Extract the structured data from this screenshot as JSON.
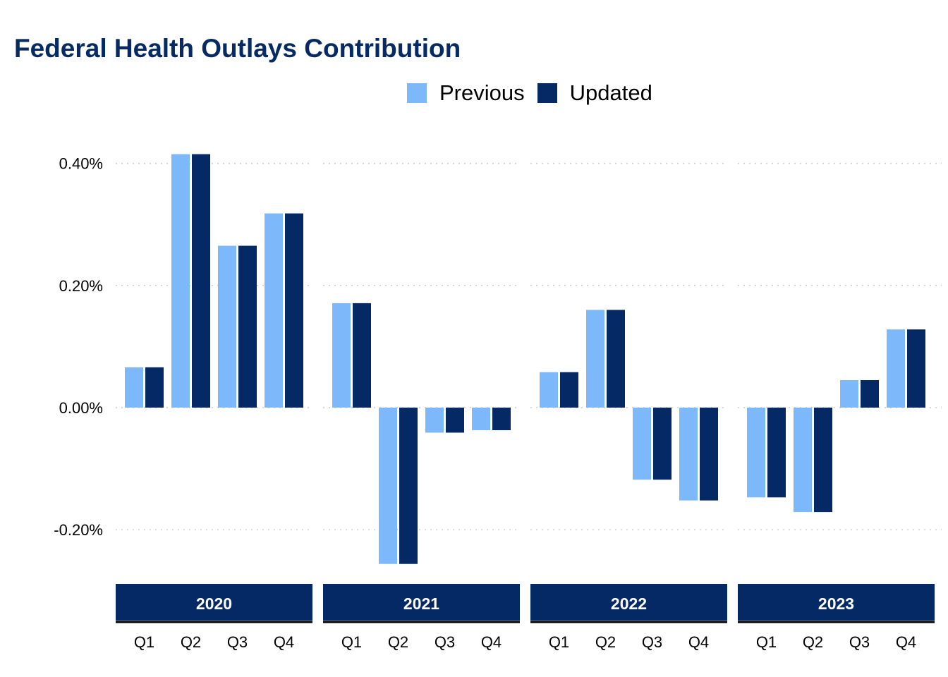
{
  "chart_data": {
    "type": "bar",
    "title": "Federal Health Outlays Contribution",
    "xlabel": "",
    "ylabel": "",
    "ylim": [
      -0.3,
      0.45
    ],
    "yticks": [
      -0.2,
      0.0,
      0.2,
      0.4
    ],
    "ytick_labels": [
      "-0.20%",
      "0.00%",
      "0.20%",
      "0.40%"
    ],
    "grid": "horizontal dotted",
    "legend_position": "top-center",
    "facets": [
      "2020",
      "2021",
      "2022",
      "2023"
    ],
    "categories": [
      "Q1",
      "Q2",
      "Q3",
      "Q4"
    ],
    "series": [
      {
        "name": "Previous",
        "color": "#7db8fa",
        "values": [
          [
            0.066,
            0.415,
            0.265,
            0.318
          ],
          [
            0.171,
            -0.256,
            -0.041,
            -0.037
          ],
          [
            0.058,
            0.16,
            -0.118,
            -0.152
          ],
          [
            -0.147,
            -0.171,
            0.045,
            0.128
          ]
        ]
      },
      {
        "name": "Updated",
        "color": "#052964",
        "values": [
          [
            0.066,
            0.415,
            0.265,
            0.318
          ],
          [
            0.171,
            -0.256,
            -0.041,
            -0.037
          ],
          [
            0.058,
            0.16,
            -0.118,
            -0.152
          ],
          [
            -0.147,
            -0.171,
            0.045,
            0.128
          ]
        ]
      }
    ],
    "colors": {
      "title": "#062a64",
      "strip": "#052964",
      "strip_text": "#ffffff",
      "grid": "#cccccc"
    }
  }
}
